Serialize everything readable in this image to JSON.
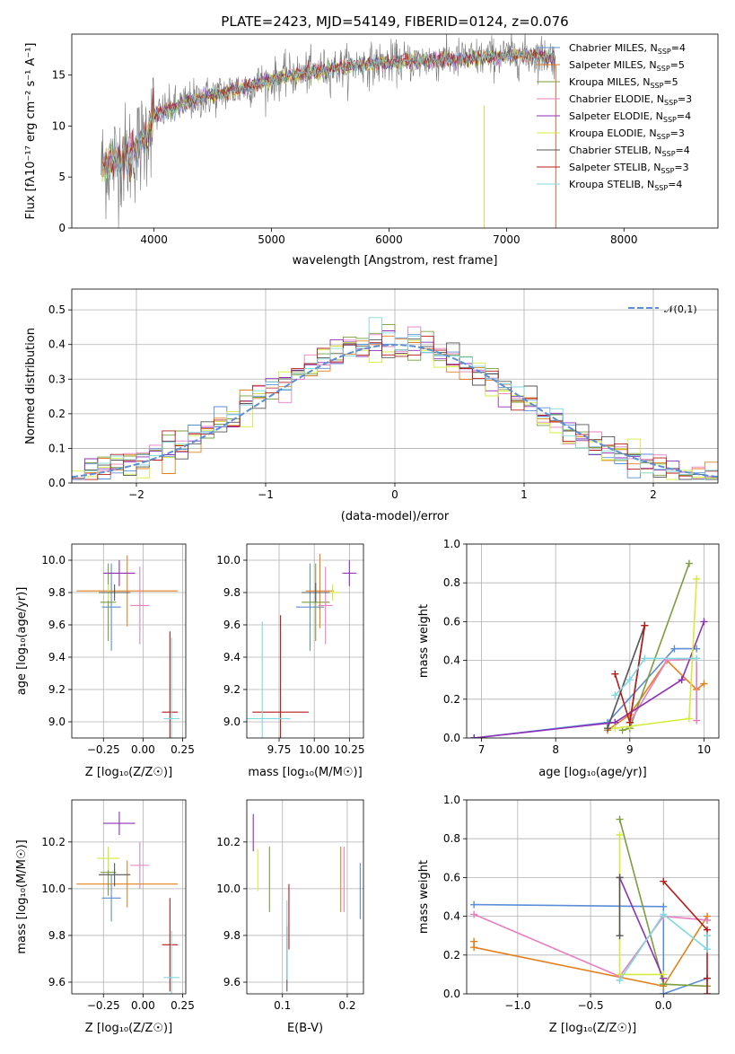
{
  "colors": [
    "#5b8ed6",
    "#e3801c",
    "#7b9e3e",
    "#e87fbf",
    "#8e2fb7",
    "#d4ec3c",
    "#555555",
    "#b71c1c",
    "#80d8e0"
  ],
  "chart_data": [
    {
      "id": "spectrum",
      "type": "line",
      "title": "PLATE=2423, MJD=54149, FIBERID=0124, z=0.076",
      "xlabel": "wavelength [Angstrom, rest frame]",
      "ylabel": "Flux [f$_\\lambda$10$^{-17}$ erg cm$^{-2}$ s$^{-1}$ A$^{-1}$]",
      "ylabel_text": "Flux [fλ10⁻¹⁷ erg cm⁻² s⁻¹ A⁻¹]",
      "xlim": [
        3300,
        8800
      ],
      "ylim": [
        0,
        19
      ],
      "xticks": [
        4000,
        5000,
        6000,
        7000,
        8000
      ],
      "yticks": [
        0,
        5,
        10,
        15
      ],
      "grid": false,
      "legend_position": "right",
      "legend": [
        "Chabrier MILES, N_SSP=4",
        "Salpeter MILES, N_SSP=5",
        "Kroupa MILES, N_SSP=5",
        "Chabrier ELODIE, N_SSP=3",
        "Salpeter ELODIE, N_SSP=4",
        "Kroupa ELODIE, N_SSP=3",
        "Chabrier STELIB, N_SSP=4",
        "Salpeter STELIB, N_SSP=3",
        "Kroupa STELIB, N_SSP=4"
      ],
      "legend_main": [
        "Chabrier MILES, N",
        "Salpeter MILES, N",
        "Kroupa MILES, N",
        "Chabrier ELODIE, N",
        "Salpeter ELODIE, N",
        "Kroupa ELODIE, N",
        "Chabrier STELIB, N",
        "Salpeter STELIB, N",
        "Kroupa STELIB, N"
      ],
      "legend_sub": "SSP",
      "legend_n": [
        "=4",
        "=5",
        "=5",
        "=3",
        "=4",
        "=3",
        "=4",
        "=3",
        "=4"
      ],
      "continuum": {
        "x": [
          3550,
          3700,
          3800,
          3900,
          4000,
          4100,
          4300,
          4500,
          4700,
          4900,
          5100,
          5300,
          5500,
          5700,
          5900,
          6100,
          6300,
          6500,
          6700,
          6900,
          7100,
          7300,
          7400
        ],
        "y": [
          6.0,
          6.8,
          7.2,
          8.3,
          11.0,
          11.5,
          12.4,
          13.0,
          13.6,
          14.2,
          14.8,
          15.2,
          15.6,
          15.9,
          16.1,
          16.3,
          16.4,
          16.5,
          16.6,
          16.8,
          16.9,
          16.9,
          16.8
        ]
      }
    },
    {
      "id": "residuals",
      "type": "histogram",
      "xlabel": "(data-model)/error",
      "ylabel": "Normed distribution",
      "xlim": [
        -2.5,
        2.5
      ],
      "ylim": [
        0,
        0.56
      ],
      "xticks": [
        -2,
        -1,
        0,
        1,
        2
      ],
      "yticks": [
        0.0,
        0.1,
        0.2,
        0.3,
        0.4,
        0.5
      ],
      "grid": true,
      "legend": [
        "𝒩(0,1)"
      ],
      "legend_position": "top-right",
      "bin_width": 0.1,
      "gaussian": {
        "mean": 0,
        "sigma": 1
      }
    },
    {
      "id": "age-vs-Z",
      "type": "errorbar",
      "xlabel": "Z [log₁₀(Z/Z☉)]",
      "ylabel": "age [log₁₀(age/yr)]",
      "xlim": [
        -0.45,
        0.27
      ],
      "ylim": [
        8.9,
        10.1
      ],
      "xticks": [
        -0.25,
        0.0,
        0.25
      ],
      "xticklabels": [
        "−0.25",
        "0.00",
        "0.25"
      ],
      "yticks": [
        9.0,
        9.2,
        9.4,
        9.6,
        9.8,
        10.0
      ],
      "grid": true,
      "points": [
        {
          "x": -0.2,
          "xerr": 0.06,
          "y": 9.71,
          "yerr": 0.27
        },
        {
          "x": -0.1,
          "xerr": 0.32,
          "y": 9.81,
          "yerr": 0.22
        },
        {
          "x": -0.22,
          "xerr": 0.05,
          "y": 9.74,
          "yerr": 0.24
        },
        {
          "x": -0.02,
          "xerr": 0.06,
          "y": 9.72,
          "yerr": 0.24
        },
        {
          "x": -0.15,
          "xerr": 0.1,
          "y": 9.92,
          "yerr": 0.08
        },
        {
          "x": -0.22,
          "xerr": 0.07,
          "y": 9.8,
          "yerr": 0.05
        },
        {
          "x": -0.18,
          "xerr": 0.1,
          "y": 9.8,
          "yerr": 0.05
        },
        {
          "x": 0.17,
          "xerr": 0.05,
          "y": 9.06,
          "yerr": 0.5
        },
        {
          "x": 0.18,
          "xerr": 0.05,
          "y": 9.02,
          "yerr": 0.5
        }
      ]
    },
    {
      "id": "age-vs-mass",
      "type": "errorbar",
      "xlabel": "mass [log₁₀(M/M☉)]",
      "xlim": [
        9.52,
        10.35
      ],
      "ylim": [
        8.9,
        10.1
      ],
      "xticks": [
        9.75,
        10.0,
        10.25
      ],
      "xticklabels": [
        "9.75",
        "10.00",
        "10.25"
      ],
      "yticks": [
        9.0,
        9.2,
        9.4,
        9.6,
        9.8,
        10.0
      ],
      "grid": true,
      "points": [
        {
          "x": 9.97,
          "xerr": 0.1,
          "y": 9.71,
          "yerr": 0.27
        },
        {
          "x": 10.04,
          "xerr": 0.1,
          "y": 9.81,
          "yerr": 0.23
        },
        {
          "x": 10.01,
          "xerr": 0.1,
          "y": 9.74,
          "yerr": 0.24
        },
        {
          "x": 10.08,
          "xerr": 0.05,
          "y": 9.72,
          "yerr": 0.24
        },
        {
          "x": 10.25,
          "xerr": 0.05,
          "y": 9.92,
          "yerr": 0.08
        },
        {
          "x": 10.13,
          "xerr": 0.05,
          "y": 9.8,
          "yerr": 0.05
        },
        {
          "x": 10.01,
          "xerr": 0.1,
          "y": 9.8,
          "yerr": 0.06
        },
        {
          "x": 9.76,
          "xerr": 0.2,
          "y": 9.06,
          "yerr": 0.6
        },
        {
          "x": 9.63,
          "xerr": 0.2,
          "y": 9.02,
          "yerr": 0.6
        }
      ]
    },
    {
      "id": "weight-vs-age",
      "type": "line",
      "xlabel": "age [log₁₀(age/yr)]",
      "ylabel": "mass weight",
      "xlim": [
        6.8,
        10.2
      ],
      "ylim": [
        0.0,
        1.0
      ],
      "xticks": [
        7,
        8,
        9,
        10
      ],
      "yticks": [
        0.0,
        0.2,
        0.4,
        0.6,
        0.8,
        1.0
      ],
      "grid": true,
      "series": [
        {
          "x": [
            6.9,
            8.7,
            9.6,
            9.9
          ],
          "y": [
            0.0,
            0.08,
            0.46,
            0.46
          ]
        },
        {
          "x": [
            8.7,
            9.0,
            9.5,
            9.9,
            10.0
          ],
          "y": [
            0.04,
            0.12,
            0.4,
            0.25,
            0.28
          ]
        },
        {
          "x": [
            8.9,
            9.0,
            9.8
          ],
          "y": [
            0.04,
            0.05,
            0.9
          ]
        },
        {
          "x": [
            9.0,
            9.5,
            9.9,
            9.9
          ],
          "y": [
            0.08,
            0.4,
            0.41,
            0.09
          ]
        },
        {
          "x": [
            6.9,
            8.8,
            9.7,
            10.0
          ],
          "y": [
            0.0,
            0.08,
            0.3,
            0.6
          ]
        },
        {
          "x": [
            8.8,
            9.0,
            9.8,
            9.9
          ],
          "y": [
            0.05,
            0.06,
            0.1,
            0.82
          ]
        },
        {
          "x": [
            8.7,
            9.2,
            9.0
          ],
          "y": [
            0.05,
            0.58,
            0.08
          ]
        },
        {
          "x": [
            8.8,
            9.0,
            9.2
          ],
          "y": [
            0.33,
            0.08,
            0.58
          ]
        },
        {
          "x": [
            8.8,
            9.0,
            9.2,
            9.9
          ],
          "y": [
            0.22,
            0.3,
            0.41,
            0.41
          ]
        }
      ]
    },
    {
      "id": "mass-vs-Z",
      "type": "errorbar",
      "xlabel": "Z [log₁₀(Z/Z☉)]",
      "ylabel": "mass [log₁₀(M/M☉)]",
      "xlim": [
        -0.45,
        0.27
      ],
      "ylim": [
        9.55,
        10.38
      ],
      "xticks": [
        -0.25,
        0.0,
        0.25
      ],
      "xticklabels": [
        "−0.25",
        "0.00",
        "0.25"
      ],
      "yticks": [
        9.6,
        9.8,
        10.0,
        10.2
      ],
      "grid": true,
      "points": [
        {
          "x": -0.2,
          "xerr": 0.06,
          "y": 9.96,
          "yerr": 0.1
        },
        {
          "x": -0.1,
          "xerr": 0.32,
          "y": 10.02,
          "yerr": 0.1
        },
        {
          "x": -0.22,
          "xerr": 0.05,
          "y": 10.07,
          "yerr": 0.1
        },
        {
          "x": -0.02,
          "xerr": 0.06,
          "y": 10.1,
          "yerr": 0.1
        },
        {
          "x": -0.15,
          "xerr": 0.1,
          "y": 10.28,
          "yerr": 0.05
        },
        {
          "x": -0.22,
          "xerr": 0.07,
          "y": 10.13,
          "yerr": 0.05
        },
        {
          "x": -0.18,
          "xerr": 0.1,
          "y": 10.06,
          "yerr": 0.05
        },
        {
          "x": 0.17,
          "xerr": 0.05,
          "y": 9.76,
          "yerr": 0.2
        },
        {
          "x": 0.18,
          "xerr": 0.05,
          "y": 9.62,
          "yerr": 0.2
        }
      ]
    },
    {
      "id": "mass-vs-EBV",
      "type": "errorbar",
      "xlabel": "E(B-V)",
      "xlim": [
        0.045,
        0.225
      ],
      "ylim": [
        9.55,
        10.38
      ],
      "xticks": [
        0.1,
        0.2
      ],
      "xticklabels": [
        "0.1",
        "0.2"
      ],
      "yticks": [
        9.6,
        9.8,
        10.0,
        10.2
      ],
      "grid": true,
      "points": [
        {
          "x": 0.22,
          "xerr": 0.0,
          "y": 9.99,
          "yerr": 0.12
        },
        {
          "x": 0.19,
          "xerr": 0.0,
          "y": 10.04,
          "yerr": 0.14
        },
        {
          "x": 0.08,
          "xerr": 0.0,
          "y": 10.04,
          "yerr": 0.14
        },
        {
          "x": 0.195,
          "xerr": 0.0,
          "y": 10.04,
          "yerr": 0.14
        },
        {
          "x": 0.055,
          "xerr": 0.0,
          "y": 10.24,
          "yerr": 0.08
        },
        {
          "x": 0.062,
          "xerr": 0.0,
          "y": 10.08,
          "yerr": 0.09
        },
        {
          "x": 0.107,
          "xerr": 0.0,
          "y": 9.7,
          "yerr": 0.14
        },
        {
          "x": 0.11,
          "xerr": 0.0,
          "y": 9.88,
          "yerr": 0.14
        },
        {
          "x": 0.107,
          "xerr": 0.0,
          "y": 9.78,
          "yerr": 0.17
        }
      ]
    },
    {
      "id": "weight-vs-Z",
      "type": "line",
      "xlabel": "Z [log₁₀(Z/Z☉)]",
      "ylabel": "mass weight",
      "xlim": [
        -1.35,
        0.38
      ],
      "ylim": [
        0.0,
        1.0
      ],
      "xticks": [
        -1.0,
        -0.5,
        0.0
      ],
      "xticklabels": [
        "−1.0",
        "−0.5",
        "0.0"
      ],
      "yticks": [
        0.0,
        0.2,
        0.4,
        0.6,
        0.8,
        1.0
      ],
      "grid": true,
      "series": [
        {
          "x": [
            -1.3,
            0.0,
            0.0,
            0.3
          ],
          "y": [
            0.46,
            0.45,
            0.0,
            0.08
          ]
        },
        {
          "x": [
            -1.3,
            -1.3,
            0.0,
            0.3,
            0.3
          ],
          "y": [
            0.27,
            0.24,
            0.04,
            0.4,
            0.38
          ]
        },
        {
          "x": [
            -0.3,
            0.0,
            0.3
          ],
          "y": [
            0.9,
            0.05,
            0.04
          ]
        },
        {
          "x": [
            -1.3,
            -0.3,
            0.0,
            0.3
          ],
          "y": [
            0.41,
            0.09,
            0.4,
            0.38
          ]
        },
        {
          "x": [
            -0.3,
            0.0
          ],
          "y": [
            0.6,
            0.08
          ]
        },
        {
          "x": [
            -0.3,
            -0.3,
            0.0
          ],
          "y": [
            0.82,
            0.1,
            0.1
          ]
        },
        {
          "x": [
            -0.3,
            -0.3
          ],
          "y": [
            0.6,
            0.3
          ]
        },
        {
          "x": [
            0.0,
            0.3,
            0.3,
            0.3
          ],
          "y": [
            0.58,
            0.33,
            0.08,
            0.0
          ]
        },
        {
          "x": [
            -0.3,
            0.0,
            0.3,
            0.3
          ],
          "y": [
            0.07,
            0.41,
            0.23,
            0.3
          ]
        }
      ]
    }
  ]
}
